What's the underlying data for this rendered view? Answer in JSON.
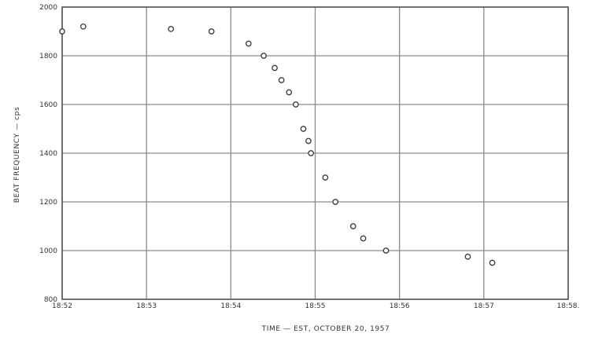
{
  "chart_data": {
    "type": "scatter",
    "title": "",
    "xlabel": "TIME — EST, OCTOBER 20, 1957",
    "ylabel": "BEAT FREQUENCY — cps",
    "x_unit": "minutes after 18:52 EST",
    "x_ticks": [
      0,
      1,
      2,
      3,
      4,
      5,
      6
    ],
    "x_tick_labels": [
      "18:52",
      "18:53",
      "18:54",
      "18:55",
      "18:56",
      "18:57",
      "18:58."
    ],
    "xlim": [
      0,
      6
    ],
    "y_ticks": [
      800,
      1000,
      1200,
      1400,
      1600,
      1800,
      2000
    ],
    "y_tick_labels": [
      "800",
      "1000",
      "1200",
      "1400",
      "1600",
      "1800",
      "2000"
    ],
    "ylim": [
      800,
      2000
    ],
    "grid": true,
    "series": [
      {
        "marker": "open-circle",
        "points": [
          {
            "x": 0.0,
            "y": 1900
          },
          {
            "x": 0.25,
            "y": 1920
          },
          {
            "x": 1.29,
            "y": 1910
          },
          {
            "x": 1.77,
            "y": 1900
          },
          {
            "x": 2.21,
            "y": 1850
          },
          {
            "x": 2.39,
            "y": 1800
          },
          {
            "x": 2.52,
            "y": 1750
          },
          {
            "x": 2.6,
            "y": 1700
          },
          {
            "x": 2.69,
            "y": 1650
          },
          {
            "x": 2.77,
            "y": 1600
          },
          {
            "x": 2.86,
            "y": 1500
          },
          {
            "x": 2.92,
            "y": 1450
          },
          {
            "x": 2.95,
            "y": 1400
          },
          {
            "x": 3.12,
            "y": 1300
          },
          {
            "x": 3.24,
            "y": 1200
          },
          {
            "x": 3.45,
            "y": 1100
          },
          {
            "x": 3.57,
            "y": 1050
          },
          {
            "x": 3.84,
            "y": 1000
          },
          {
            "x": 4.81,
            "y": 975
          },
          {
            "x": 5.1,
            "y": 950
          }
        ]
      }
    ]
  },
  "colors": {
    "grid": "#8a8a8a",
    "frame": "#555555",
    "marker": "#3a3a3a",
    "text": "#333333"
  }
}
